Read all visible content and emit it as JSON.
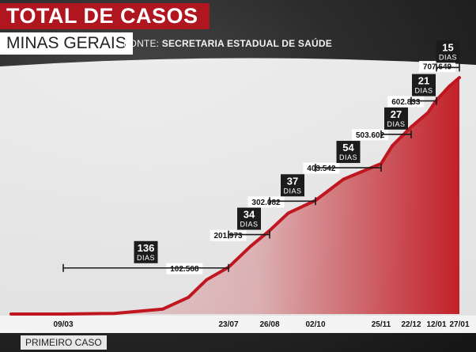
{
  "header": {
    "title": "TOTAL DE CASOS",
    "subtitle": "MINAS GERAIS",
    "source_prefix": "FONTE: ",
    "source": "SECRETARIA  ESTADUAL DE SAÚDE"
  },
  "footer": {
    "first_case": "PRIMEIRO CASO"
  },
  "colors": {
    "curve": "#c0161f",
    "title_bg": "#b0161f"
  },
  "chart_data": {
    "type": "area",
    "title": "TOTAL DE CASOS",
    "subtitle": "MINAS GERAIS",
    "tick_labels": [
      "09/03",
      "23/07",
      "26/08",
      "02/10",
      "25/11",
      "22/12",
      "12/01",
      "27/01"
    ],
    "points": [
      {
        "date": "2020-03-09",
        "value": 0
      },
      {
        "date": "2020-04-20",
        "value": 2000
      },
      {
        "date": "2020-05-30",
        "value": 15000
      },
      {
        "date": "2020-06-20",
        "value": 50000
      },
      {
        "date": "2020-07-05",
        "value": 102568
      },
      {
        "date": "2020-07-23",
        "value": 140000
      },
      {
        "date": "2020-08-10",
        "value": 201973
      },
      {
        "date": "2020-08-26",
        "value": 250000
      },
      {
        "date": "2020-09-10",
        "value": 302082
      },
      {
        "date": "2020-10-02",
        "value": 340000
      },
      {
        "date": "2020-10-25",
        "value": 403542
      },
      {
        "date": "2020-11-25",
        "value": 450000
      },
      {
        "date": "2020-12-05",
        "value": 503602
      },
      {
        "date": "2020-12-22",
        "value": 560000
      },
      {
        "date": "2021-01-05",
        "value": 602833
      },
      {
        "date": "2021-01-12",
        "value": 640000
      },
      {
        "date": "2021-01-20",
        "value": 680000
      },
      {
        "date": "2021-01-27",
        "value": 707649
      }
    ],
    "data_labels": [
      {
        "text": "102.568",
        "date": "2020-07-05",
        "value": 102568
      },
      {
        "text": "201.973",
        "date": "2020-08-10",
        "value": 201973
      },
      {
        "text": "302.082",
        "date": "2020-09-10",
        "value": 302082
      },
      {
        "text": "403.542",
        "date": "2020-10-25",
        "value": 403542
      },
      {
        "text": "503.602",
        "date": "2020-12-05",
        "value": 503602
      },
      {
        "text": "602.833",
        "date": "2021-01-05",
        "value": 602833
      },
      {
        "text": "707.649",
        "date": "2021-01-27",
        "value": 707649
      }
    ],
    "intervals": [
      {
        "days": "136",
        "unit": "DIAS",
        "start": "2020-03-09",
        "end": "2020-07-23",
        "level": 100000
      },
      {
        "days": "34",
        "unit": "DIAS",
        "start": "2020-07-23",
        "end": "2020-08-26",
        "level": 200000
      },
      {
        "days": "37",
        "unit": "DIAS",
        "start": "2020-08-26",
        "end": "2020-10-02",
        "level": 300000
      },
      {
        "days": "54",
        "unit": "DIAS",
        "start": "2020-10-02",
        "end": "2020-11-25",
        "level": 400000
      },
      {
        "days": "27",
        "unit": "DIAS",
        "start": "2020-11-25",
        "end": "2020-12-22",
        "level": 500000
      },
      {
        "days": "21",
        "unit": "DIAS",
        "start": "2020-12-22",
        "end": "2021-01-12",
        "level": 600000
      },
      {
        "days": "15",
        "unit": "DIAS",
        "start": "2021-01-12",
        "end": "2021-01-27",
        "level": 700000
      }
    ]
  }
}
